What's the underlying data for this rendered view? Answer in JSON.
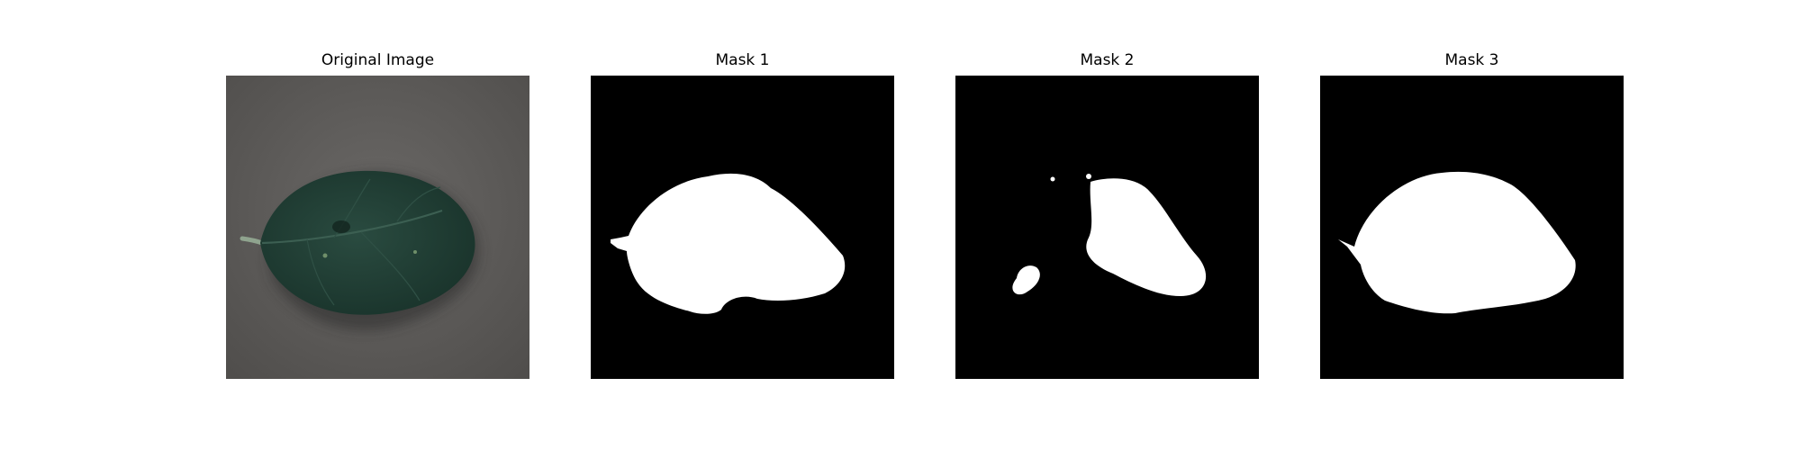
{
  "figure": {
    "panels": [
      {
        "title": "Original Image"
      },
      {
        "title": "Mask 1"
      },
      {
        "title": "Mask 2"
      },
      {
        "title": "Mask 3"
      }
    ]
  },
  "colors": {
    "background_gray": "#5f5d5b",
    "leaf_green": "#1f3b32",
    "mask_foreground": "#ffffff",
    "mask_background": "#000000"
  }
}
